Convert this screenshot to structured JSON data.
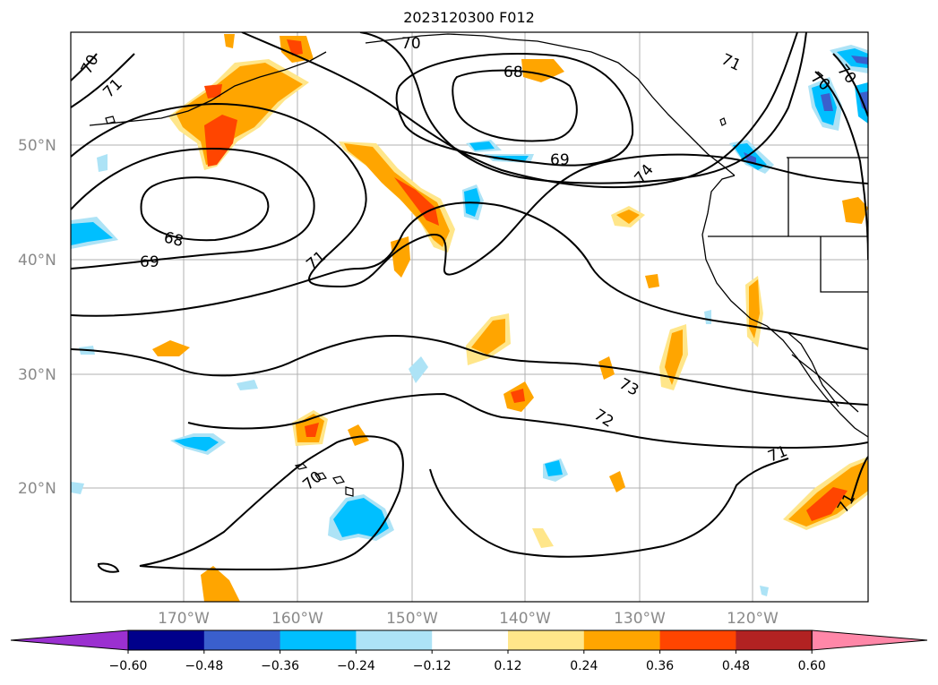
{
  "title": "2023120300 F012",
  "latitude_labels": [
    "50°N",
    "40°N",
    "30°N",
    "20°N"
  ],
  "longitude_labels": [
    "170°W",
    "160°W",
    "150°W",
    "140°W",
    "130°W",
    "120°W"
  ],
  "contour_labels": [
    "70",
    "71",
    "70",
    "68",
    "69",
    "68",
    "69",
    "71",
    "74",
    "71",
    "70",
    "70",
    "73",
    "72",
    "71",
    "70",
    "71"
  ],
  "colorbar": {
    "ticks": [
      "−0.60",
      "−0.48",
      "−0.36",
      "−0.24",
      "−0.12",
      "0.12",
      "0.24",
      "0.36",
      "0.48",
      "0.60"
    ],
    "colors": [
      "#9b30d0",
      "#00008b",
      "#3a5fcd",
      "#00bfff",
      "#ade3f6",
      "#ffffff",
      "#ffe68a",
      "#ffa500",
      "#ff4500",
      "#b22222",
      "#ff87a8"
    ]
  }
}
